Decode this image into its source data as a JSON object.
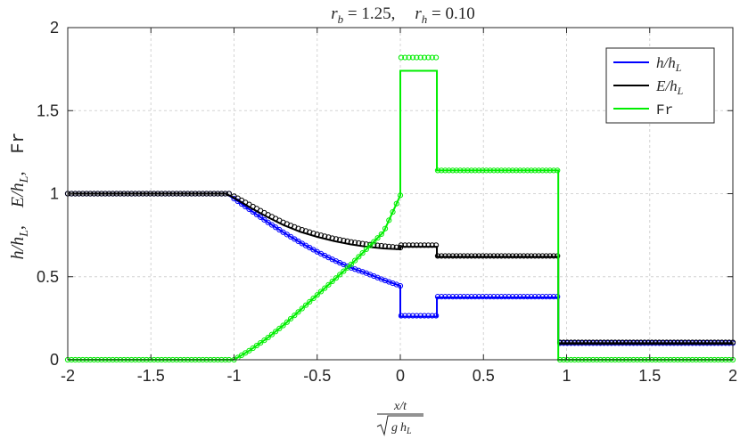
{
  "chart_data": {
    "type": "line",
    "title_parts": {
      "rb_label": "r",
      "rb_sub": "b",
      "rb_value": " = 1.25,",
      "rh_label": "r",
      "rh_sub": "h",
      "rh_value": " = 0.10"
    },
    "xlabel": {
      "numerator": "x/t",
      "denominator_g": "g",
      "denominator_h": "h",
      "denominator_sub": "L"
    },
    "ylabel": {
      "h": "h/h",
      "h_sub": "L",
      "e": "E/h",
      "e_sub": "L",
      "fr": "Fr",
      "sep": ","
    },
    "xlim": [
      -2,
      2
    ],
    "ylim": [
      0,
      2
    ],
    "xticks": [
      -2,
      -1.5,
      -1,
      -0.5,
      0,
      0.5,
      1,
      1.5,
      2
    ],
    "xtick_labels": [
      "-2",
      "-1.5",
      "-1",
      "-0.5",
      "0",
      "0.5",
      "1",
      "1.5",
      "2"
    ],
    "yticks": [
      0,
      0.5,
      1,
      1.5,
      2
    ],
    "ytick_labels": [
      "0",
      "0.5",
      "1",
      "1.5",
      "2"
    ],
    "grid": true,
    "legend_position": "top-right",
    "series": [
      {
        "name": "h/h_L",
        "legend_text": "h/h",
        "legend_sub": "L",
        "legend_font": "math",
        "color": "#0000ff",
        "line": [
          [
            -2,
            1
          ],
          [
            -1.05,
            1
          ],
          [
            -1,
            0.97
          ],
          [
            -0.9,
            0.9
          ],
          [
            -0.8,
            0.83
          ],
          [
            -0.7,
            0.765
          ],
          [
            -0.6,
            0.705
          ],
          [
            -0.5,
            0.65
          ],
          [
            -0.4,
            0.6
          ],
          [
            -0.3,
            0.555
          ],
          [
            -0.2,
            0.52
          ],
          [
            -0.1,
            0.48
          ],
          [
            0,
            0.445
          ],
          [
            0,
            0.26
          ],
          [
            0.22,
            0.26
          ],
          [
            0.22,
            0.375
          ],
          [
            0.95,
            0.375
          ],
          [
            0.95,
            0.1
          ],
          [
            2,
            0.1
          ]
        ],
        "markers": [
          {
            "x_start": -2,
            "x_end": -1.03,
            "count": 44,
            "y": [
              [
                -2,
                1
              ],
              [
                -1.03,
                1
              ]
            ]
          },
          {
            "x_start": -1,
            "x_end": 0,
            "count": 45,
            "y": [
              [
                -1,
                0.97
              ],
              [
                -0.9,
                0.9
              ],
              [
                -0.8,
                0.83
              ],
              [
                -0.7,
                0.765
              ],
              [
                -0.6,
                0.705
              ],
              [
                -0.5,
                0.65
              ],
              [
                -0.4,
                0.6
              ],
              [
                -0.3,
                0.555
              ],
              [
                -0.2,
                0.52
              ],
              [
                -0.1,
                0.48
              ],
              [
                0,
                0.445
              ]
            ]
          },
          {
            "x_start": 0.005,
            "x_end": 0.215,
            "count": 10,
            "y": [
              [
                0,
                0.265
              ],
              [
                0.22,
                0.265
              ]
            ]
          },
          {
            "x_start": 0.225,
            "x_end": 0.945,
            "count": 33,
            "y": [
              [
                0.22,
                0.38
              ],
              [
                0.95,
                0.38
              ]
            ]
          },
          {
            "x_start": 0.96,
            "x_end": 2,
            "count": 48,
            "y": [
              [
                0.95,
                0.1
              ],
              [
                2,
                0.1
              ]
            ]
          }
        ]
      },
      {
        "name": "E/h_L",
        "legend_text": "E/h",
        "legend_sub": "L",
        "legend_font": "math",
        "color": "#000000",
        "line": [
          [
            -2,
            1
          ],
          [
            -1.05,
            1
          ],
          [
            -1,
            0.975
          ],
          [
            -0.9,
            0.915
          ],
          [
            -0.8,
            0.86
          ],
          [
            -0.7,
            0.81
          ],
          [
            -0.6,
            0.77
          ],
          [
            -0.5,
            0.74
          ],
          [
            -0.4,
            0.715
          ],
          [
            -0.3,
            0.695
          ],
          [
            -0.2,
            0.68
          ],
          [
            -0.1,
            0.67
          ],
          [
            0,
            0.665
          ],
          [
            0,
            0.68
          ],
          [
            0.22,
            0.68
          ],
          [
            0.22,
            0.62
          ],
          [
            0.95,
            0.62
          ],
          [
            0.95,
            0.1
          ],
          [
            2,
            0.1
          ]
        ],
        "markers": [
          {
            "x_start": -2,
            "x_end": -1.03,
            "count": 44,
            "y": [
              [
                -2,
                1
              ],
              [
                -1.03,
                1
              ]
            ]
          },
          {
            "x_start": -1,
            "x_end": 0,
            "count": 45,
            "y": [
              [
                -1,
                0.985
              ],
              [
                -0.9,
                0.93
              ],
              [
                -0.8,
                0.875
              ],
              [
                -0.7,
                0.825
              ],
              [
                -0.6,
                0.785
              ],
              [
                -0.5,
                0.755
              ],
              [
                -0.4,
                0.73
              ],
              [
                -0.3,
                0.71
              ],
              [
                -0.2,
                0.695
              ],
              [
                -0.1,
                0.685
              ],
              [
                0,
                0.675
              ]
            ]
          },
          {
            "x_start": 0.005,
            "x_end": 0.215,
            "count": 10,
            "y": [
              [
                0,
                0.69
              ],
              [
                0.22,
                0.69
              ]
            ]
          },
          {
            "x_start": 0.225,
            "x_end": 0.945,
            "count": 33,
            "y": [
              [
                0.22,
                0.625
              ],
              [
                0.95,
                0.625
              ]
            ]
          },
          {
            "x_start": 0.96,
            "x_end": 2,
            "count": 48,
            "y": [
              [
                0.95,
                0.105
              ],
              [
                2,
                0.105
              ]
            ]
          }
        ]
      },
      {
        "name": "Fr",
        "legend_text": "Fr",
        "legend_sub": "",
        "legend_font": "mono",
        "color": "#00ee00",
        "line": [
          [
            -2,
            0
          ],
          [
            -1,
            0
          ],
          [
            -0.9,
            0.06
          ],
          [
            -0.8,
            0.13
          ],
          [
            -0.7,
            0.21
          ],
          [
            -0.6,
            0.3
          ],
          [
            -0.5,
            0.39
          ],
          [
            -0.4,
            0.48
          ],
          [
            -0.3,
            0.57
          ],
          [
            -0.2,
            0.67
          ],
          [
            -0.1,
            0.77
          ],
          [
            0,
            0.99
          ],
          [
            0,
            1.74
          ],
          [
            0.22,
            1.74
          ],
          [
            0.22,
            1.14
          ],
          [
            0.95,
            1.14
          ],
          [
            0.95,
            0
          ],
          [
            2,
            0
          ]
        ],
        "markers": [
          {
            "x_start": -2,
            "x_end": -1.03,
            "count": 44,
            "y": [
              [
                -2,
                0
              ],
              [
                -1.03,
                0
              ]
            ]
          },
          {
            "x_start": -1,
            "x_end": 0,
            "count": 45,
            "y": [
              [
                -1,
                0
              ],
              [
                -0.9,
                0.06
              ],
              [
                -0.8,
                0.13
              ],
              [
                -0.7,
                0.21
              ],
              [
                -0.6,
                0.3
              ],
              [
                -0.5,
                0.39
              ],
              [
                -0.4,
                0.48
              ],
              [
                -0.3,
                0.57
              ],
              [
                -0.2,
                0.67
              ],
              [
                -0.1,
                0.77
              ],
              [
                0,
                0.99
              ]
            ]
          },
          {
            "x_start": 0.005,
            "x_end": 0.215,
            "count": 10,
            "y": [
              [
                0,
                1.82
              ],
              [
                0.22,
                1.82
              ]
            ]
          },
          {
            "x_start": 0.225,
            "x_end": 0.945,
            "count": 33,
            "y": [
              [
                0.22,
                1.14
              ],
              [
                0.95,
                1.14
              ]
            ]
          },
          {
            "x_start": 0.96,
            "x_end": 2,
            "count": 48,
            "y": [
              [
                0.95,
                0
              ],
              [
                2,
                0
              ]
            ]
          }
        ]
      }
    ]
  }
}
